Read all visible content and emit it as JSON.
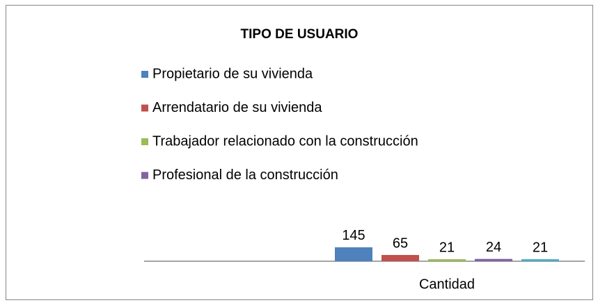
{
  "chart_data": {
    "type": "bar",
    "title": "TIPO DE USUARIO",
    "categories": [
      "Cantidad"
    ],
    "series": [
      {
        "name": "Propietario de su vivienda",
        "color": "#4f81bd",
        "values": [
          145
        ]
      },
      {
        "name": "Arrendatario de su vivienda",
        "color": "#c0504d",
        "values": [
          65
        ]
      },
      {
        "name": "Trabajador relacionado con la construcción",
        "color": "#9bbb59",
        "values": [
          21
        ]
      },
      {
        "name": "Profesional de la construcción",
        "color": "#8064a2",
        "values": [
          24
        ]
      },
      {
        "color": "#4bacc6",
        "values": [
          21
        ]
      }
    ],
    "ylim": [
      0,
      2500
    ],
    "data_labels": true,
    "legend": "top-left"
  }
}
